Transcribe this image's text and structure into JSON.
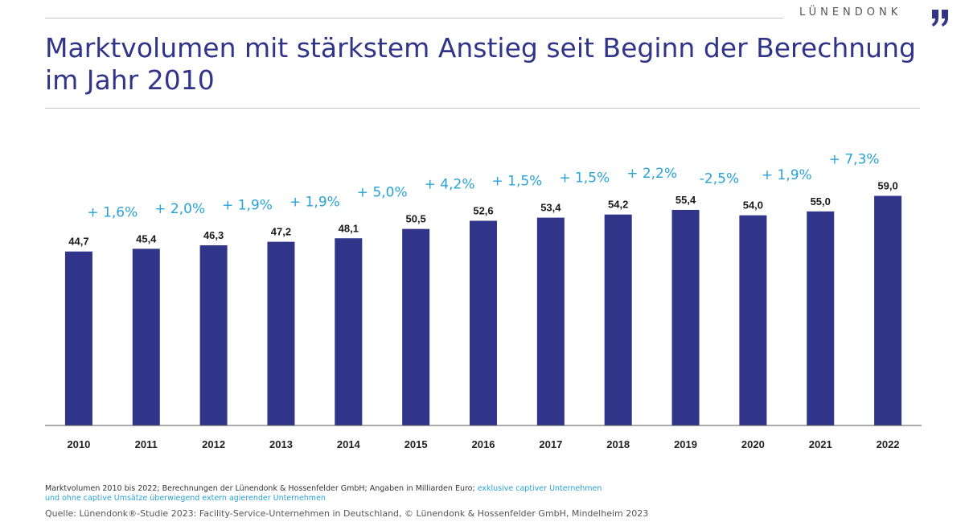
{
  "brand": {
    "name": "LÜNENDONK"
  },
  "title": "Marktvolumen mit stärkstem Anstieg seit Beginn der Berechnung im Jahr 2010",
  "chart_data": {
    "type": "bar",
    "title": "Marktvolumen mit stärkstem Anstieg seit Beginn der Berechnung im Jahr 2010",
    "xlabel": "",
    "ylabel": "",
    "unit": "Milliarden Euro",
    "ylim": [
      0,
      62
    ],
    "grid": false,
    "legend": "none",
    "categories": [
      "2010",
      "2011",
      "2012",
      "2013",
      "2014",
      "2015",
      "2016",
      "2017",
      "2018",
      "2019",
      "2020",
      "2021",
      "2022"
    ],
    "values": [
      44.7,
      45.4,
      46.3,
      47.2,
      48.1,
      50.5,
      52.6,
      53.4,
      54.2,
      55.4,
      54.0,
      55.0,
      59.0
    ],
    "value_labels": [
      "44,7",
      "45,4",
      "46,3",
      "47,2",
      "48,1",
      "50,5",
      "52,6",
      "53,4",
      "54,2",
      "55,4",
      "54,0",
      "55,0",
      "59,0"
    ],
    "growth_labels": [
      "+ 1,6%",
      "+ 2,0%",
      "+ 1,9%",
      "+ 1,9%",
      "+ 5,0%",
      "+ 4,2%",
      "+ 1,5%",
      "+ 1,5%",
      "+ 2,2%",
      "-2,5%",
      "+ 1,9%",
      "+ 7,3%"
    ],
    "colors": {
      "bar": "#303589",
      "growth": "#29a3d6",
      "value": "#1a1a1a",
      "axis": "#555555"
    }
  },
  "footnote": {
    "text": "Marktvolumen 2010 bis 2022; Berechnungen der Lünendonk & Hossenfelder GmbH; Angaben in Milliarden Euro; ",
    "highlight_line1": "exklusive captiver Unternehmen",
    "highlight_line2": "und ohne captive Umsätze überwiegend extern agierender Unternehmen"
  },
  "source": "Quelle: Lünendonk®-Studie 2023: Facility-Service-Unternehmen in Deutschland, © Lünendonk & Hossenfelder GmbH, Mindelheim 2023"
}
